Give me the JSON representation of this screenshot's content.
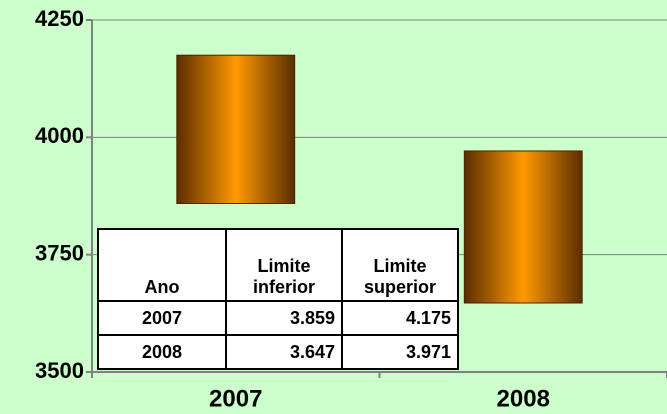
{
  "chart_data": {
    "type": "floating_bar",
    "categories": [
      "2007",
      "2008"
    ],
    "series": [
      {
        "name": "Limite inferior",
        "values": [
          3859,
          3647
        ],
        "value_labels": [
          "3.859",
          "3.647"
        ]
      },
      {
        "name": "Limite superior",
        "values": [
          4175,
          3971
        ],
        "value_labels": [
          "4.175",
          "3.971"
        ]
      }
    ],
    "table_header": "Ano",
    "color": "#ff9900",
    "ylim": [
      3500,
      4250
    ],
    "yticks": [
      3500,
      3750,
      4000,
      4250
    ],
    "grid": true
  }
}
